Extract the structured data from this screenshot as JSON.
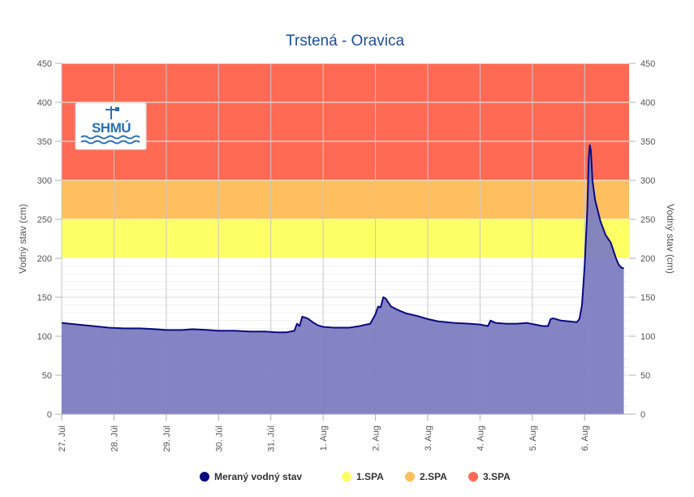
{
  "chart_data": {
    "type": "area",
    "title": "Trstená - Oravica",
    "ylabel": "Vodný stav (cm)",
    "ylabel_right": "Vodný stav (cm)",
    "ylim": [
      0,
      450
    ],
    "yticks": [
      0,
      50,
      100,
      150,
      200,
      250,
      300,
      350,
      400,
      450
    ],
    "xlim": [
      0,
      10.85
    ],
    "x_tick_labels": [
      "27. Júl",
      "28. Júl",
      "29. Júl",
      "30. Júl",
      "31. Júl",
      "1. Aug",
      "2. Aug",
      "3. Aug",
      "4. Aug",
      "5. Aug",
      "6. Aug"
    ],
    "grid": true,
    "legend_position": "bottom",
    "bands": [
      {
        "name": "1.SPA",
        "from": 200,
        "to": 250,
        "color": "#ffff66"
      },
      {
        "name": "2.SPA",
        "from": 250,
        "to": 300,
        "color": "#ffbf5f"
      },
      {
        "name": "3.SPA",
        "from": 300,
        "to": 450,
        "color": "#ff6a55"
      }
    ],
    "series": [
      {
        "name": "Meraný vodný stav",
        "color": "#0a0a80",
        "fill": "#7d7dc2",
        "points": [
          [
            0.0,
            117
          ],
          [
            0.3,
            115
          ],
          [
            0.6,
            113
          ],
          [
            0.9,
            111
          ],
          [
            1.2,
            110
          ],
          [
            1.5,
            110
          ],
          [
            1.8,
            109
          ],
          [
            2.0,
            108
          ],
          [
            2.3,
            108
          ],
          [
            2.5,
            109
          ],
          [
            2.8,
            108
          ],
          [
            3.0,
            107
          ],
          [
            3.3,
            107
          ],
          [
            3.6,
            106
          ],
          [
            3.9,
            106
          ],
          [
            4.1,
            105
          ],
          [
            4.3,
            105
          ],
          [
            4.45,
            107
          ],
          [
            4.5,
            116
          ],
          [
            4.55,
            113
          ],
          [
            4.6,
            125
          ],
          [
            4.7,
            123
          ],
          [
            4.8,
            118
          ],
          [
            4.9,
            114
          ],
          [
            5.0,
            112
          ],
          [
            5.2,
            111
          ],
          [
            5.5,
            111
          ],
          [
            5.7,
            113
          ],
          [
            5.9,
            116
          ],
          [
            6.0,
            128
          ],
          [
            6.05,
            138
          ],
          [
            6.1,
            137
          ],
          [
            6.15,
            150
          ],
          [
            6.2,
            148
          ],
          [
            6.3,
            138
          ],
          [
            6.45,
            133
          ],
          [
            6.6,
            129
          ],
          [
            6.8,
            126
          ],
          [
            7.0,
            122
          ],
          [
            7.2,
            119
          ],
          [
            7.5,
            117
          ],
          [
            7.8,
            116
          ],
          [
            8.0,
            115
          ],
          [
            8.15,
            113
          ],
          [
            8.2,
            120
          ],
          [
            8.3,
            117
          ],
          [
            8.5,
            116
          ],
          [
            8.7,
            116
          ],
          [
            8.9,
            117
          ],
          [
            9.05,
            115
          ],
          [
            9.2,
            113
          ],
          [
            9.3,
            113
          ],
          [
            9.35,
            122
          ],
          [
            9.4,
            123
          ],
          [
            9.55,
            120
          ],
          [
            9.7,
            119
          ],
          [
            9.85,
            118
          ],
          [
            9.9,
            122
          ],
          [
            9.95,
            140
          ],
          [
            10.0,
            190
          ],
          [
            10.05,
            260
          ],
          [
            10.08,
            330
          ],
          [
            10.1,
            345
          ],
          [
            10.12,
            338
          ],
          [
            10.15,
            300
          ],
          [
            10.2,
            275
          ],
          [
            10.3,
            248
          ],
          [
            10.4,
            230
          ],
          [
            10.5,
            220
          ],
          [
            10.55,
            210
          ],
          [
            10.6,
            200
          ],
          [
            10.65,
            192
          ],
          [
            10.7,
            188
          ],
          [
            10.75,
            187
          ]
        ]
      }
    ],
    "legend": [
      {
        "label": "Meraný vodný stav",
        "color": "#0a0a80"
      },
      {
        "label": "1.SPA",
        "color": "#ffff66"
      },
      {
        "label": "2.SPA",
        "color": "#ffbf5f"
      },
      {
        "label": "3.SPA",
        "color": "#ff6a55"
      }
    ]
  },
  "logo": {
    "text": "SHMÚ"
  }
}
